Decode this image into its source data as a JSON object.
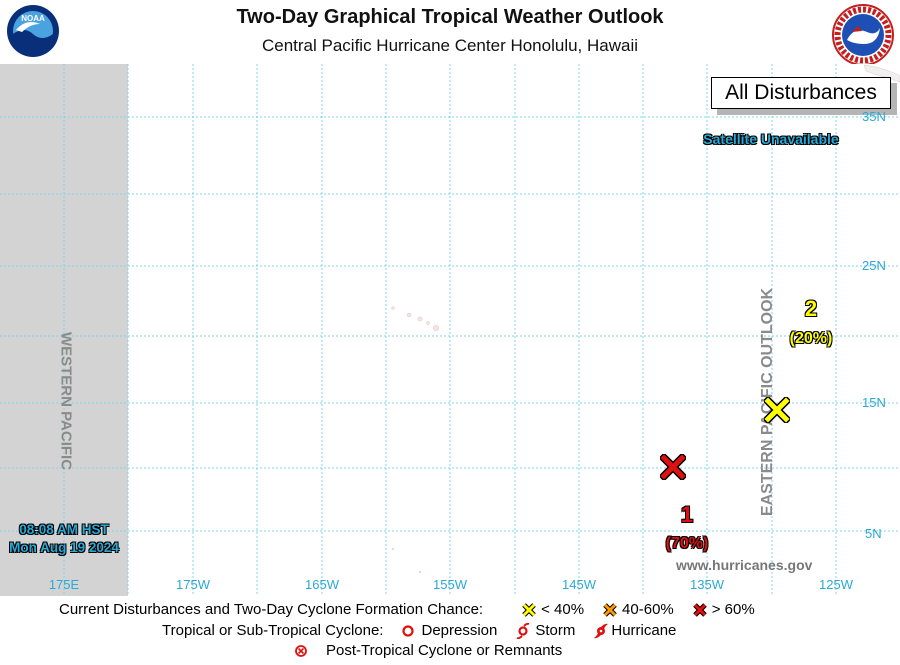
{
  "header": {
    "title": "Two-Day Graphical Tropical Weather Outlook",
    "subtitle": "Central Pacific Hurricane Center  Honolulu, Hawaii",
    "left_logo": "noaa-logo",
    "right_logo": "national-weather-service-logo"
  },
  "map": {
    "badge": "All Disturbances",
    "satellite_status": "Satellite Unavailable",
    "region_west": "WESTERN PACIFIC",
    "region_east": "EASTERN PACIFIC OUTLOOK",
    "latitude_labels": [
      "35N",
      "25N",
      "15N",
      "5N"
    ],
    "longitude_labels": [
      "175E",
      "175W",
      "165W",
      "155W",
      "145W",
      "135W",
      "125W"
    ],
    "timestamp_line1": "08:08 AM HST",
    "timestamp_line2": "Mon Aug 19 2024",
    "website": "www.hurricanes.gov",
    "colors": {
      "ocean": "#ffffff",
      "grid": "#7fd3ea",
      "label": "#2aa9d6",
      "out_of_area": "#d3d3d3"
    }
  },
  "disturbances": [
    {
      "number": "1",
      "chance": "(70%)",
      "category": "> 60%",
      "marker": "x-icon",
      "color": "#e01010"
    },
    {
      "number": "2",
      "chance": "(20%)",
      "category": "< 40%",
      "marker": "x-icon",
      "color": "#ffff00"
    }
  ],
  "legend": {
    "row1_label": "Current Disturbances and Two-Day Cyclone Formation Chance:",
    "row1_items": [
      {
        "label": "< 40%",
        "color": "#ffff00"
      },
      {
        "label": "40-60%",
        "color": "#ff9900"
      },
      {
        "label": "> 60%",
        "color": "#e01010"
      }
    ],
    "row2_label": "Tropical or Sub-Tropical Cyclone:",
    "row2_items": [
      {
        "label": "Depression",
        "icon": "depression-icon"
      },
      {
        "label": "Storm",
        "icon": "storm-icon"
      },
      {
        "label": "Hurricane",
        "icon": "hurricane-icon"
      }
    ],
    "row3_label": "Post-Tropical Cyclone or Remnants",
    "row3_icon": "post-tropical-icon"
  }
}
